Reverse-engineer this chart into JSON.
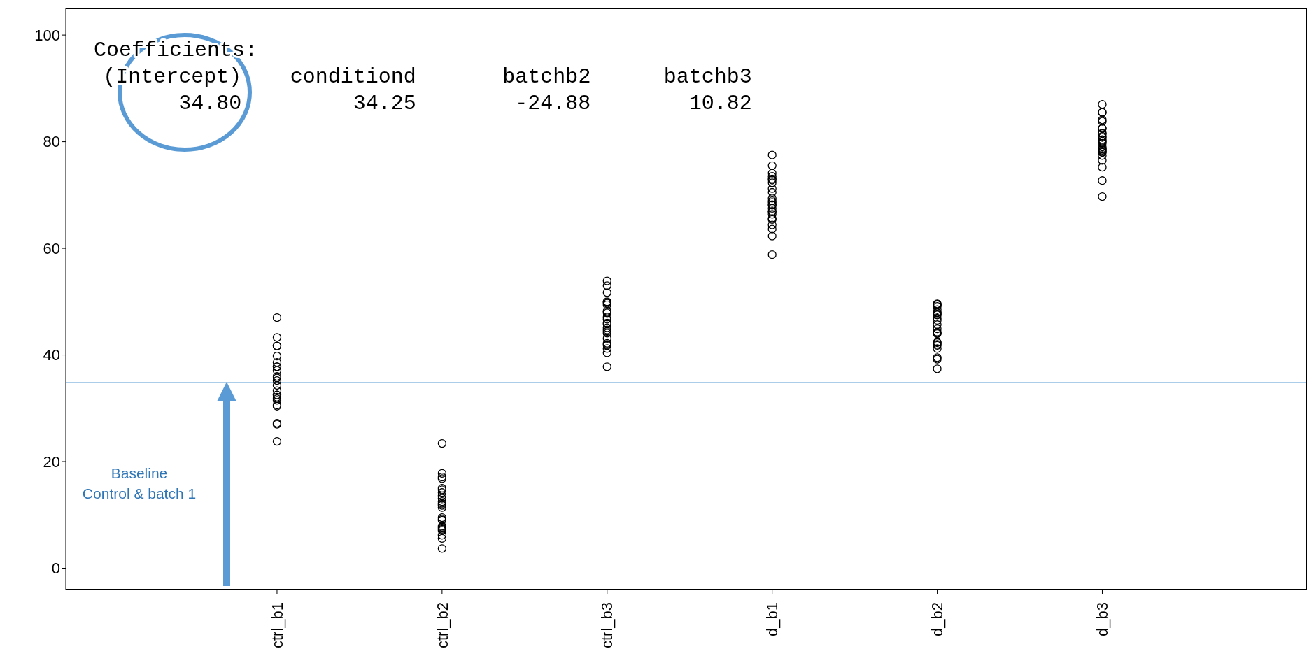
{
  "chart_data": {
    "type": "scatter",
    "categories": [
      "ctrl_b1",
      "ctrl_b2",
      "ctrl_b3",
      "d_b1",
      "d_b2",
      "d_b3"
    ],
    "ylim": [
      -4,
      105
    ],
    "yticks": [
      0,
      20,
      40,
      60,
      80,
      100
    ],
    "grid": false,
    "legend": false,
    "marker": "circle",
    "series": [
      {
        "color": "#000000",
        "x": [
          "ctrl_b1",
          "ctrl_b1",
          "ctrl_b1",
          "ctrl_b1",
          "ctrl_b1",
          "ctrl_b1",
          "ctrl_b1",
          "ctrl_b1",
          "ctrl_b1",
          "ctrl_b1",
          "ctrl_b1",
          "ctrl_b1",
          "ctrl_b1",
          "ctrl_b1",
          "ctrl_b1",
          "ctrl_b1",
          "ctrl_b1",
          "ctrl_b1",
          "ctrl_b1",
          "ctrl_b1",
          "ctrl_b1",
          "ctrl_b1",
          "ctrl_b1",
          "ctrl_b1",
          "ctrl_b2",
          "ctrl_b2",
          "ctrl_b2",
          "ctrl_b2",
          "ctrl_b2",
          "ctrl_b2",
          "ctrl_b2",
          "ctrl_b2",
          "ctrl_b2",
          "ctrl_b2",
          "ctrl_b2",
          "ctrl_b2",
          "ctrl_b2",
          "ctrl_b2",
          "ctrl_b2",
          "ctrl_b2",
          "ctrl_b2",
          "ctrl_b2",
          "ctrl_b2",
          "ctrl_b2",
          "ctrl_b2",
          "ctrl_b2",
          "ctrl_b2",
          "ctrl_b2",
          "ctrl_b2",
          "ctrl_b3",
          "ctrl_b3",
          "ctrl_b3",
          "ctrl_b3",
          "ctrl_b3",
          "ctrl_b3",
          "ctrl_b3",
          "ctrl_b3",
          "ctrl_b3",
          "ctrl_b3",
          "ctrl_b3",
          "ctrl_b3",
          "ctrl_b3",
          "ctrl_b3",
          "ctrl_b3",
          "ctrl_b3",
          "ctrl_b3",
          "ctrl_b3",
          "ctrl_b3",
          "ctrl_b3",
          "ctrl_b3",
          "ctrl_b3",
          "ctrl_b3",
          "ctrl_b3",
          "ctrl_b3",
          "d_b1",
          "d_b1",
          "d_b1",
          "d_b1",
          "d_b1",
          "d_b1",
          "d_b1",
          "d_b1",
          "d_b1",
          "d_b1",
          "d_b1",
          "d_b1",
          "d_b1",
          "d_b1",
          "d_b1",
          "d_b1",
          "d_b1",
          "d_b1",
          "d_b1",
          "d_b1",
          "d_b1",
          "d_b1",
          "d_b1",
          "d_b1",
          "d_b2",
          "d_b2",
          "d_b2",
          "d_b2",
          "d_b2",
          "d_b2",
          "d_b2",
          "d_b2",
          "d_b2",
          "d_b2",
          "d_b2",
          "d_b2",
          "d_b2",
          "d_b2",
          "d_b2",
          "d_b2",
          "d_b2",
          "d_b2",
          "d_b2",
          "d_b2",
          "d_b2",
          "d_b2",
          "d_b2",
          "d_b2",
          "d_b3",
          "d_b3",
          "d_b3",
          "d_b3",
          "d_b3",
          "d_b3",
          "d_b3",
          "d_b3",
          "d_b3",
          "d_b3",
          "d_b3",
          "d_b3",
          "d_b3",
          "d_b3",
          "d_b3",
          "d_b3",
          "d_b3",
          "d_b3",
          "d_b3",
          "d_b3",
          "d_b3",
          "d_b3",
          "d_b3",
          "d_b3",
          "d_b3",
          "d_b3",
          "d_b3"
        ],
        "values": [
          47.0,
          43.3,
          41.7,
          41.7,
          39.8,
          38.6,
          37.8,
          37.8,
          37.1,
          36.0,
          35.2,
          35.7,
          34.3,
          33.3,
          32.5,
          32.1,
          32.5,
          31.8,
          31.5,
          30.4,
          30.6,
          27.0,
          27.2,
          23.8,
          23.4,
          17.8,
          16.8,
          17.1,
          14.7,
          15.0,
          14.2,
          13.6,
          13.1,
          12.5,
          12.2,
          11.4,
          12.0,
          11.8,
          9.2,
          9.0,
          9.5,
          7.1,
          7.5,
          7.9,
          7.7,
          6.2,
          7.3,
          5.6,
          3.7,
          53.9,
          53.0,
          51.7,
          50.0,
          49.7,
          49.9,
          49.4,
          48.2,
          48.2,
          47.9,
          47.1,
          46.7,
          45.8,
          46.0,
          45.1,
          44.7,
          44.1,
          44.4,
          43.1,
          42.0,
          42.2,
          41.8,
          41.2,
          40.4,
          37.8,
          77.5,
          75.5,
          74.1,
          73.5,
          73.0,
          72.8,
          72.3,
          71.2,
          70.5,
          69.4,
          68.9,
          68.2,
          68.6,
          68.1,
          67.5,
          66.9,
          66.9,
          66.4,
          65.4,
          65.6,
          64.4,
          63.6,
          62.3,
          58.8,
          49.5,
          49.4,
          49.6,
          49.1,
          48.5,
          47.9,
          48.0,
          47.6,
          47.5,
          46.9,
          46.5,
          45.7,
          44.9,
          44.3,
          44.1,
          44.0,
          42.4,
          42.3,
          42.0,
          41.8,
          41.2,
          39.5,
          39.2,
          37.4,
          87.0,
          85.5,
          85.5,
          84.1,
          83.8,
          82.5,
          82.5,
          81.6,
          81.5,
          81.0,
          80.8,
          80.0,
          80.1,
          80.4,
          79.7,
          79.0,
          78.7,
          78.6,
          78.4,
          78.2,
          78.0,
          78.0,
          77.4,
          76.5,
          75.2,
          72.7,
          69.7
        ]
      }
    ],
    "ref_lines": [
      {
        "axis": "y",
        "value": 34.8,
        "color": "#5b9bd5"
      }
    ],
    "annotations": [
      "Coefficients:",
      "(Intercept)",
      "conditiond",
      "batchb2",
      "batchb3",
      "34.80",
      "34.25",
      "-24.88",
      "10.82",
      "Baseline",
      "Control & batch 1"
    ]
  }
}
